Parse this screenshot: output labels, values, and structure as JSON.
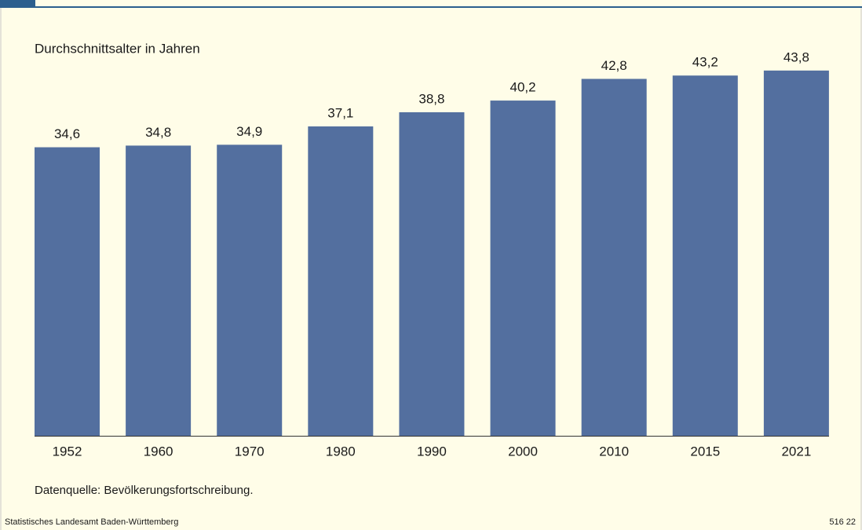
{
  "chart_data": {
    "type": "bar",
    "title": "Durchschnittsalter in Jahren",
    "categories": [
      "1952",
      "1960",
      "1970",
      "1980",
      "1990",
      "2000",
      "2010",
      "2015",
      "2021"
    ],
    "values": [
      34.6,
      34.8,
      34.9,
      37.1,
      38.8,
      40.2,
      42.8,
      43.2,
      43.8
    ],
    "value_labels": [
      "34,6",
      "34,8",
      "34,9",
      "37,1",
      "38,8",
      "40,2",
      "42,8",
      "43,2",
      "43,8"
    ],
    "color": "#536f9f",
    "source": "Datenquelle: Bevölkerungsfortschreibung.",
    "footer": "Statistisches Landesamt Baden-Württemberg",
    "code": "516 22"
  }
}
